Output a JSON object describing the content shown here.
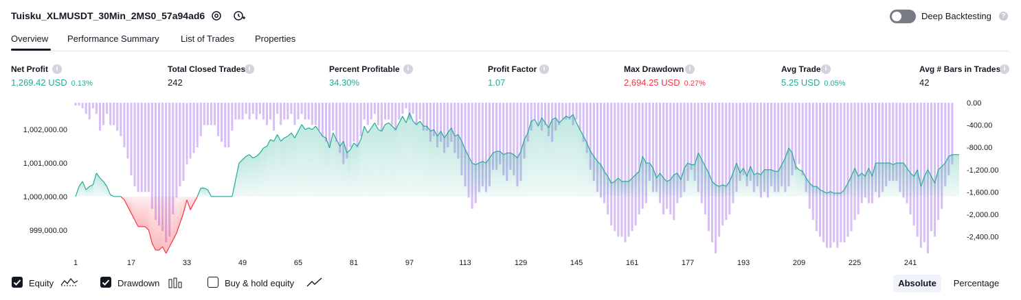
{
  "header": {
    "title": "Tuisku_XLMUSDT_30Min_2MS0_57a94ad6",
    "deep_backtesting_label": "Deep Backtesting",
    "deep_backtesting_enabled": false
  },
  "tabs": [
    {
      "label": "Overview",
      "active": true
    },
    {
      "label": "Performance Summary",
      "active": false
    },
    {
      "label": "List of Trades",
      "active": false
    },
    {
      "label": "Properties",
      "active": false
    }
  ],
  "stats": [
    {
      "label": "Net Profit",
      "value": "1,269.42 USD",
      "pct": "0.13%",
      "tone": "pos"
    },
    {
      "label": "Total Closed Trades",
      "value": "242",
      "pct": "",
      "tone": "neu"
    },
    {
      "label": "Percent Profitable",
      "value": "34.30%",
      "pct": "",
      "tone": "pos"
    },
    {
      "label": "Profit Factor",
      "value": "1.07",
      "pct": "",
      "tone": "pos"
    },
    {
      "label": "Max Drawdown",
      "value": "2,694.25 USD",
      "pct": "0.27%",
      "tone": "neg"
    },
    {
      "label": "Avg Trade",
      "value": "5.25 USD",
      "pct": "0.05%",
      "tone": "pos"
    },
    {
      "label": "Avg # Bars in Trades",
      "value": "42",
      "pct": "",
      "tone": "neu"
    }
  ],
  "chart_data": {
    "type": "line",
    "x_ticks": [
      "1",
      "17",
      "33",
      "49",
      "65",
      "81",
      "97",
      "113",
      "129",
      "145",
      "161",
      "177",
      "193",
      "209",
      "225",
      "241"
    ],
    "left_axis": {
      "ticks": [
        "1,002,000.00",
        "1,001,000.00",
        "1,000,000.00",
        "999,000.00"
      ],
      "range": [
        998300,
        1002800
      ]
    },
    "right_axis": {
      "ticks": [
        "0.00",
        "-400.00",
        "-800.00",
        "-1,200.00",
        "-1,600.00",
        "-2,000.00",
        "-2,400.00"
      ],
      "range": [
        -2700,
        0
      ]
    },
    "baseline": 1000000,
    "series": [
      {
        "name": "Equity",
        "color_pos": "#22ab94",
        "color_neg": "#f23645",
        "values": [
          1000000,
          1000300,
          1000450,
          1000200,
          1000300,
          1000350,
          1000700,
          1000550,
          1000450,
          1000300,
          1000050,
          1000000,
          1000000,
          1000000,
          999900,
          999700,
          999500,
          999300,
          999100,
          999100,
          999100,
          999000,
          998600,
          998400,
          998400,
          998500,
          998300,
          998500,
          998700,
          998900,
          999200,
          999500,
          999900,
          999600,
          999800,
          1000000,
          1000250,
          1000250,
          1000200,
          1000000,
          1000000,
          1000000,
          1000000,
          1000000,
          1000000,
          1000000,
          1000500,
          1001000,
          1001100,
          1001200,
          1001250,
          1001150,
          1001200,
          1001300,
          1001450,
          1001500,
          1001700,
          1001650,
          1001850,
          1001650,
          1001750,
          1001800,
          1001900,
          1001750,
          1001950,
          1002150,
          1002000,
          1002050,
          1002000,
          1002100,
          1001950,
          1001800,
          1001750,
          1001450,
          1001900,
          1001700,
          1001500,
          1001650,
          1001300,
          1001400,
          1001600,
          1001500,
          1001700,
          1002100,
          1001900,
          1002050,
          1002200,
          1002000,
          1001950,
          1002150,
          1002200,
          1002100,
          1002000,
          1002200,
          1002400,
          1002200,
          1002500,
          1002250,
          1002150,
          1002250,
          1002100,
          1002100,
          1001950,
          1002000,
          1001800,
          1001950,
          1001750,
          1001900,
          1002050,
          1001800,
          1001850,
          1001650,
          1001400,
          1001200,
          1001000,
          1000950,
          1001000,
          1001050,
          1001000,
          1001150,
          1001300,
          1001350,
          1001350,
          1001250,
          1001300,
          1001300,
          1001250,
          1001150,
          1001350,
          1001700,
          1001900,
          1002250,
          1002300,
          1002100,
          1002350,
          1002200,
          1002050,
          1002300,
          1002350,
          1002200,
          1002300,
          1002400,
          1002350,
          1002450,
          1002200,
          1002000,
          1001800,
          1001600,
          1001350,
          1001200,
          1001050,
          1000950,
          1000750,
          1000600,
          1000400,
          1000450,
          1000550,
          1000450,
          1000450,
          1000450,
          1000550,
          1000650,
          1000750,
          1001200,
          1001000,
          1001000,
          1000850,
          1000550,
          1000700,
          1000550,
          1000450,
          1000500,
          1000650,
          1000700,
          1000500,
          1000850,
          1001000,
          1000950,
          1000950,
          1001300,
          1001100,
          1000900,
          1000700,
          1000450,
          1000350,
          1000300,
          1000350,
          1000300,
          1000450,
          1000700,
          1001000,
          1000700,
          1000850,
          1000600,
          1000900,
          1000650,
          1000700,
          1000650,
          1000800,
          1000800,
          1000800,
          1000750,
          1000750,
          1000950,
          1001150,
          1001450,
          1001300,
          1000900,
          1000800,
          1000750,
          1000550,
          1000400,
          1000300,
          1000300,
          1000200,
          1000150,
          1000100,
          1000150,
          1000100,
          1000100,
          1000100,
          1000200,
          1000400,
          1000600,
          1000850,
          1000600,
          1000700,
          1000600,
          1000850,
          1000600,
          1001000,
          1001000,
          1001000,
          1001000,
          1001000,
          1000950,
          1001000,
          1001000,
          1001000,
          1000850,
          1000700,
          1000600,
          1000800,
          1000300,
          1000600,
          1000800,
          1000600,
          1000400,
          1000800,
          1000900,
          1001000,
          1001200,
          1001250,
          1001250,
          1001250
        ]
      },
      {
        "name": "Drawdown",
        "color": "#c9a8f0",
        "values": [
          -50,
          -50,
          -100,
          -200,
          -300,
          -100,
          -200,
          -500,
          -400,
          -200,
          -400,
          -400,
          -500,
          -600,
          -800,
          -1000,
          -1300,
          -1500,
          -1600,
          -1600,
          -1600,
          -1600,
          -1900,
          -2100,
          -2200,
          -2300,
          -2500,
          -2400,
          -2000,
          -1700,
          -1500,
          -1400,
          -1100,
          -1000,
          -900,
          -800,
          -600,
          -400,
          -400,
          -400,
          -400,
          -600,
          -700,
          -800,
          -800,
          -500,
          -300,
          -300,
          -300,
          -200,
          -300,
          -200,
          -300,
          -200,
          -300,
          -400,
          -300,
          -500,
          -200,
          -400,
          -300,
          -300,
          -200,
          -400,
          -300,
          -200,
          -300,
          -300,
          -400,
          -400,
          -500,
          -600,
          -700,
          -800,
          -500,
          -700,
          -900,
          -1100,
          -1000,
          -800,
          -700,
          -800,
          -600,
          -300,
          -400,
          -300,
          -200,
          -400,
          -500,
          -300,
          -300,
          -400,
          -500,
          -300,
          -200,
          -100,
          -300,
          -200,
          -400,
          -300,
          -500,
          -500,
          -700,
          -600,
          -800,
          -700,
          -900,
          -800,
          -700,
          -900,
          -1000,
          -1300,
          -1500,
          -1700,
          -1900,
          -1800,
          -1600,
          -1500,
          -1600,
          -1500,
          -1200,
          -1200,
          -1100,
          -1300,
          -1400,
          -1200,
          -1300,
          -1500,
          -1400,
          -1000,
          -700,
          -500,
          -300,
          -400,
          -500,
          -400,
          -600,
          -700,
          -500,
          -400,
          -300,
          -300,
          -300,
          -400,
          -300,
          -500,
          -700,
          -900,
          -1200,
          -1400,
          -1600,
          -1700,
          -1800,
          -2000,
          -2200,
          -2300,
          -2400,
          -2400,
          -2500,
          -2400,
          -2300,
          -2200,
          -2000,
          -1900,
          -1800,
          -1400,
          -1600,
          -1600,
          -1800,
          -2000,
          -1900,
          -2000,
          -2100,
          -1800,
          -1700,
          -1600,
          -1400,
          -1200,
          -1400,
          -1600,
          -1800,
          -2000,
          -2300,
          -2500,
          -2700,
          -2400,
          -2200,
          -2100,
          -2000,
          -1800,
          -1600,
          -1400,
          -1300,
          -1500,
          -1400,
          -1600,
          -1500,
          -1700,
          -1600,
          -1700,
          -1500,
          -1600,
          -1600,
          -1500,
          -1600,
          -1500,
          -1300,
          -1200,
          -1100,
          -1300,
          -1600,
          -1900,
          -2100,
          -2300,
          -2400,
          -2500,
          -2600,
          -2600,
          -2500,
          -2600,
          -2500,
          -2500,
          -2400,
          -2300,
          -2100,
          -2000,
          -1800,
          -1700,
          -1800,
          -1800,
          -1600,
          -1700,
          -1600,
          -1500,
          -1400,
          -1400,
          -1400,
          -1600,
          -1700,
          -1800,
          -2000,
          -2200,
          -2400,
          -2600,
          -2500,
          -2700,
          -2300,
          -2400,
          -2100,
          -1900,
          -1500,
          -1300,
          -1100
        ]
      }
    ]
  },
  "legend": {
    "equity_label": "Equity",
    "equity_checked": true,
    "drawdown_label": "Drawdown",
    "drawdown_checked": true,
    "buyhold_label": "Buy & hold equity",
    "buyhold_checked": false
  },
  "scale_toggle": {
    "absolute_label": "Absolute",
    "percentage_label": "Percentage",
    "selected": "Absolute"
  }
}
